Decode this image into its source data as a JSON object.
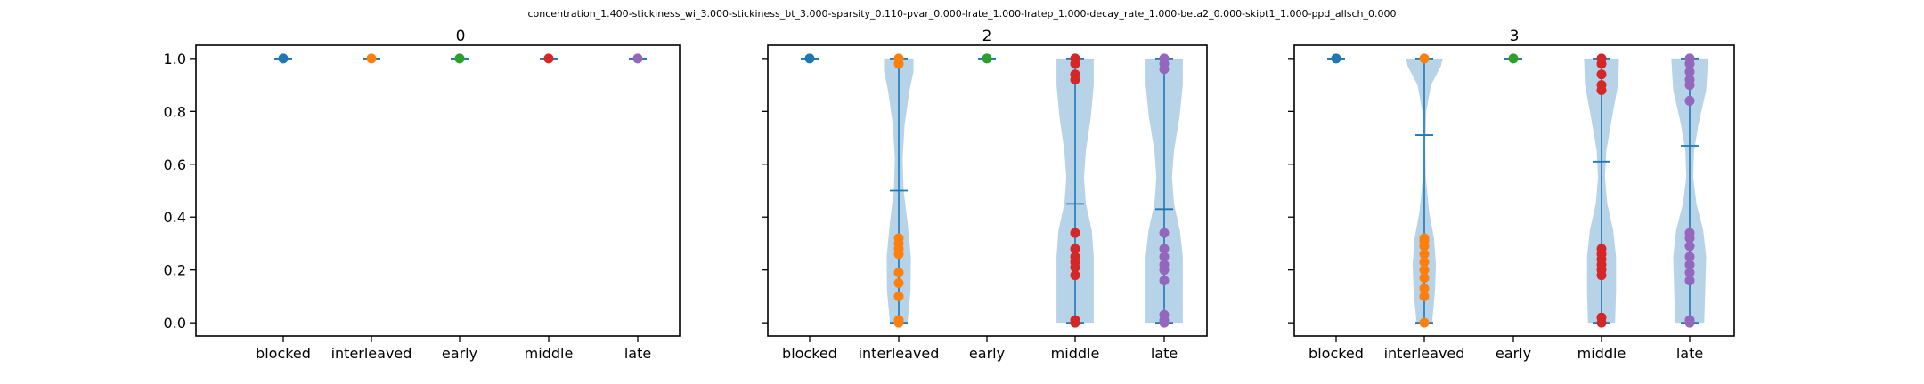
{
  "figure": {
    "suptitle": "concentration_1.400-stickiness_wi_3.000-stickiness_bt_3.000-sparsity_0.110-pvar_0.000-lrate_1.000-lratep_1.000-decay_rate_1.000-beta2_0.000-skipt1_1.000-ppd_allsch_0.000"
  },
  "colors": {
    "violin_fill": "#aacbe4",
    "violin_line": "#1f77b4",
    "category_colors": [
      "#1f77b4",
      "#ff7f0e",
      "#2ca02c",
      "#d62728",
      "#9467bd"
    ]
  },
  "chart_data": [
    {
      "type": "violin",
      "title": "0",
      "categories": [
        "blocked",
        "interleaved",
        "early",
        "middle",
        "late"
      ],
      "ylim": [
        -0.05,
        1.05
      ],
      "yticks": [
        "0.0",
        "0.2",
        "0.4",
        "0.6",
        "0.8",
        "1.0"
      ],
      "show_ytick_labels": true,
      "violins": [
        {
          "category": "blocked",
          "min": 1.0,
          "max": 1.0,
          "mean": 1.0,
          "points": [
            1.0
          ]
        },
        {
          "category": "interleaved",
          "min": 1.0,
          "max": 1.0,
          "mean": 1.0,
          "points": [
            1.0
          ]
        },
        {
          "category": "early",
          "min": 1.0,
          "max": 1.0,
          "mean": 1.0,
          "points": [
            1.0
          ]
        },
        {
          "category": "middle",
          "min": 1.0,
          "max": 1.0,
          "mean": 1.0,
          "points": [
            1.0
          ]
        },
        {
          "category": "late",
          "min": 1.0,
          "max": 1.0,
          "mean": 1.0,
          "points": [
            1.0
          ]
        }
      ]
    },
    {
      "type": "violin",
      "title": "2",
      "categories": [
        "blocked",
        "interleaved",
        "early",
        "middle",
        "late"
      ],
      "ylim": [
        -0.05,
        1.05
      ],
      "yticks": [
        "0.0",
        "0.2",
        "0.4",
        "0.6",
        "0.8",
        "1.0"
      ],
      "show_ytick_labels": false,
      "violins": [
        {
          "category": "blocked",
          "min": 1.0,
          "max": 1.0,
          "mean": 1.0,
          "points": [
            1.0
          ]
        },
        {
          "category": "interleaved",
          "min": 0.0,
          "max": 1.0,
          "mean": 0.5,
          "points": [
            0.0,
            0.01,
            0.1,
            0.15,
            0.19,
            0.26,
            0.28,
            0.3,
            0.32,
            0.98,
            1.0
          ],
          "density": [
            [
              0.0,
              0.45
            ],
            [
              0.12,
              0.6
            ],
            [
              0.25,
              0.62
            ],
            [
              0.38,
              0.45
            ],
            [
              0.5,
              0.25
            ],
            [
              0.62,
              0.2
            ],
            [
              0.75,
              0.3
            ],
            [
              0.88,
              0.55
            ],
            [
              0.95,
              0.75
            ],
            [
              1.0,
              0.75
            ]
          ]
        },
        {
          "category": "early",
          "min": 1.0,
          "max": 1.0,
          "mean": 1.0,
          "points": [
            1.0
          ]
        },
        {
          "category": "middle",
          "min": 0.0,
          "max": 1.0,
          "mean": 0.45,
          "points": [
            0.0,
            0.01,
            0.18,
            0.21,
            0.23,
            0.25,
            0.28,
            0.34,
            0.92,
            0.94,
            0.98,
            1.0
          ],
          "density": [
            [
              0.0,
              0.95
            ],
            [
              0.12,
              0.95
            ],
            [
              0.25,
              0.95
            ],
            [
              0.35,
              0.85
            ],
            [
              0.45,
              0.55
            ],
            [
              0.55,
              0.45
            ],
            [
              0.65,
              0.55
            ],
            [
              0.78,
              0.8
            ],
            [
              0.9,
              0.95
            ],
            [
              1.0,
              0.95
            ]
          ]
        },
        {
          "category": "late",
          "min": 0.0,
          "max": 1.0,
          "mean": 0.43,
          "points": [
            0.0,
            0.01,
            0.03,
            0.16,
            0.2,
            0.22,
            0.25,
            0.28,
            0.34,
            0.96,
            0.98,
            1.0
          ],
          "density": [
            [
              0.0,
              0.95
            ],
            [
              0.12,
              0.95
            ],
            [
              0.25,
              0.95
            ],
            [
              0.35,
              0.8
            ],
            [
              0.45,
              0.5
            ],
            [
              0.55,
              0.4
            ],
            [
              0.65,
              0.5
            ],
            [
              0.78,
              0.78
            ],
            [
              0.9,
              0.95
            ],
            [
              1.0,
              0.95
            ]
          ]
        }
      ]
    },
    {
      "type": "violin",
      "title": "3",
      "categories": [
        "blocked",
        "interleaved",
        "early",
        "middle",
        "late"
      ],
      "ylim": [
        -0.05,
        1.05
      ],
      "yticks": [
        "0.0",
        "0.2",
        "0.4",
        "0.6",
        "0.8",
        "1.0"
      ],
      "show_ytick_labels": false,
      "violins": [
        {
          "category": "blocked",
          "min": 1.0,
          "max": 1.0,
          "mean": 1.0,
          "points": [
            1.0
          ]
        },
        {
          "category": "interleaved",
          "min": 0.0,
          "max": 1.0,
          "mean": 0.71,
          "points": [
            0.0,
            0.1,
            0.13,
            0.17,
            0.2,
            0.23,
            0.26,
            0.29,
            0.31,
            0.32,
            1.0
          ],
          "density": [
            [
              0.0,
              0.4
            ],
            [
              0.12,
              0.55
            ],
            [
              0.22,
              0.6
            ],
            [
              0.32,
              0.5
            ],
            [
              0.42,
              0.25
            ],
            [
              0.55,
              0.08
            ],
            [
              0.68,
              0.05
            ],
            [
              0.8,
              0.1
            ],
            [
              0.9,
              0.35
            ],
            [
              0.97,
              0.85
            ],
            [
              1.0,
              0.95
            ]
          ]
        },
        {
          "category": "early",
          "min": 1.0,
          "max": 1.0,
          "mean": 1.0,
          "points": [
            1.0
          ]
        },
        {
          "category": "middle",
          "min": 0.0,
          "max": 1.0,
          "mean": 0.61,
          "points": [
            0.0,
            0.02,
            0.18,
            0.2,
            0.22,
            0.24,
            0.26,
            0.28,
            0.88,
            0.9,
            0.94,
            0.98,
            1.0
          ],
          "density": [
            [
              0.0,
              0.7
            ],
            [
              0.12,
              0.75
            ],
            [
              0.25,
              0.75
            ],
            [
              0.35,
              0.6
            ],
            [
              0.45,
              0.3
            ],
            [
              0.55,
              0.18
            ],
            [
              0.65,
              0.25
            ],
            [
              0.78,
              0.55
            ],
            [
              0.9,
              0.85
            ],
            [
              1.0,
              0.9
            ]
          ]
        },
        {
          "category": "late",
          "min": 0.0,
          "max": 1.0,
          "mean": 0.67,
          "points": [
            0.0,
            0.01,
            0.16,
            0.19,
            0.22,
            0.25,
            0.29,
            0.32,
            0.34,
            0.84,
            0.9,
            0.92,
            0.95,
            0.98,
            1.0
          ],
          "density": [
            [
              0.0,
              0.75
            ],
            [
              0.12,
              0.8
            ],
            [
              0.25,
              0.85
            ],
            [
              0.35,
              0.7
            ],
            [
              0.45,
              0.35
            ],
            [
              0.55,
              0.18
            ],
            [
              0.65,
              0.22
            ],
            [
              0.75,
              0.45
            ],
            [
              0.88,
              0.85
            ],
            [
              1.0,
              0.95
            ]
          ]
        }
      ]
    }
  ]
}
